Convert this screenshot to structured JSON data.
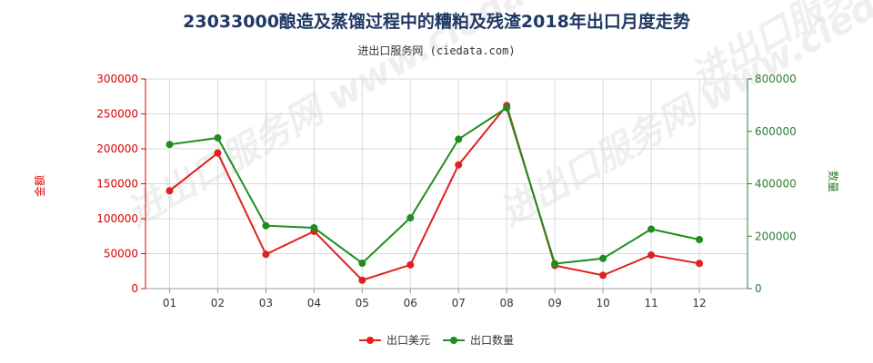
{
  "chart_data": {
    "type": "line",
    "title": "23033000酿造及蒸馏过程中的糟粕及残渣2018年出口月度走势",
    "subtitle": "进出口服务网 (ciedata.com)",
    "watermark": "进出口服务网 www.ciedata.com",
    "categories": [
      "01",
      "02",
      "03",
      "04",
      "05",
      "06",
      "07",
      "08",
      "09",
      "10",
      "11",
      "12"
    ],
    "y_left": {
      "label": "金额",
      "ylim": [
        0,
        300000
      ],
      "ticks": [
        "0",
        "50000",
        "100000",
        "150000",
        "200000",
        "250000",
        "300000"
      ],
      "color": "#dd0000"
    },
    "y_right": {
      "label": "数量",
      "ylim": [
        0,
        800000
      ],
      "ticks": [
        "0",
        "200000",
        "400000",
        "600000",
        "800000"
      ],
      "color": "#2e7d32"
    },
    "series": [
      {
        "name": "出口美元",
        "axis": "left",
        "color": "#e02020",
        "values": [
          140000,
          194000,
          49000,
          82000,
          12000,
          34000,
          177000,
          262000,
          33000,
          19000,
          48000,
          36000
        ]
      },
      {
        "name": "出口数量",
        "axis": "right",
        "color": "#1e8c1e",
        "values": [
          550000,
          575000,
          240000,
          232000,
          97000,
          270000,
          570000,
          690000,
          95000,
          115000,
          227000,
          187000
        ]
      }
    ],
    "grid": true,
    "legend_position": "bottom-center"
  }
}
